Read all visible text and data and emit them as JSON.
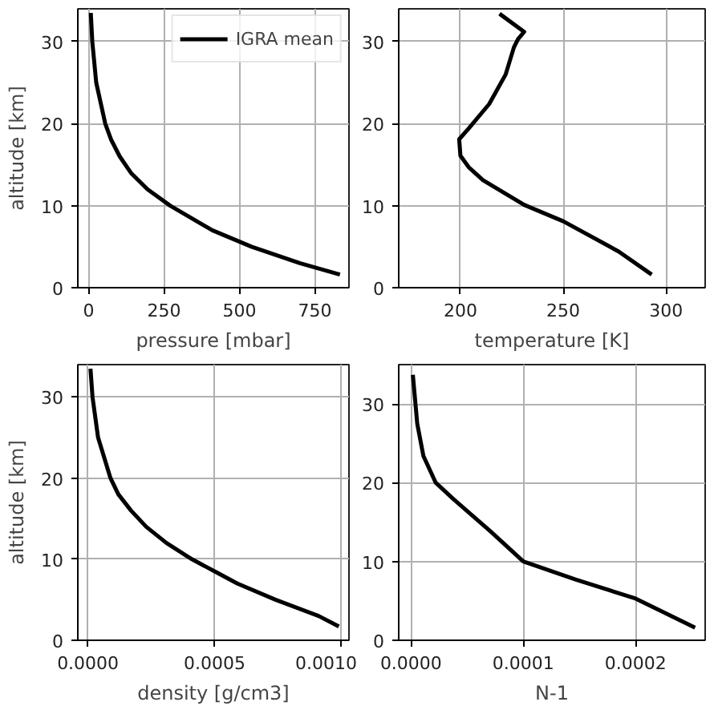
{
  "chart_data": [
    {
      "type": "line",
      "xlabel": "pressure [mbar]",
      "ylabel": "altitude [km]",
      "xlim": [
        -36,
        863
      ],
      "ylim": [
        0,
        34
      ],
      "xticks": [
        0,
        250,
        500,
        750
      ],
      "yticks": [
        0,
        10,
        20,
        30
      ],
      "grid": true,
      "legend": "top right",
      "line_style": "solid",
      "series": [
        {
          "name": "IGRA mean",
          "color": "#000000",
          "x": [
            833,
            700,
            540,
            410,
            270,
            195,
            140,
            103,
            75,
            55,
            25,
            12,
            7
          ],
          "values": [
            1.6,
            3,
            5,
            7,
            10,
            12,
            14,
            16,
            18,
            20,
            25,
            30,
            33.5
          ]
        }
      ]
    },
    {
      "type": "line",
      "xlabel": "temperature [K]",
      "xlim": [
        170,
        319
      ],
      "ylim": [
        0,
        34
      ],
      "xticks": [
        200,
        250,
        300
      ],
      "yticks": [
        0,
        10,
        20,
        30
      ],
      "grid": true,
      "line_style": "solid",
      "series": [
        {
          "color": "#000000",
          "x": [
            293,
            277,
            250,
            231,
            211,
            204,
            200,
            199.4,
            204,
            214,
            222,
            226,
            228,
            231,
            219
          ],
          "values": [
            1.6,
            4.4,
            8.1,
            10.1,
            13.1,
            14.7,
            16.1,
            18.1,
            19.4,
            22.4,
            26,
            29.3,
            30.3,
            31.2,
            33.4
          ]
        }
      ]
    },
    {
      "type": "line",
      "xlabel": "density [g/cm3]",
      "ylabel": "altitude [km]",
      "xlim": [
        -4e-05,
        0.00103
      ],
      "ylim": [
        0,
        34
      ],
      "xticks": [
        {
          "value": 0,
          "label": "0.0000"
        },
        {
          "value": 0.0005,
          "label": "0.0005"
        },
        {
          "value": 0.001,
          "label": "0.0010"
        }
      ],
      "yticks": [
        0,
        10,
        20,
        30
      ],
      "grid": true,
      "line_style": "solid",
      "series": [
        {
          "color": "#000000",
          "x": [
            0.00099,
            0.00091,
            0.00074,
            0.00059,
            0.0005,
            0.00041,
            0.00031,
            0.00023,
            0.00017,
            0.00012,
            8.9e-05,
            4e-05,
            1.8e-05,
            1e-05
          ],
          "values": [
            1.7,
            3,
            5,
            7,
            8.5,
            10,
            12,
            14,
            16,
            18,
            20,
            25,
            30,
            33.5
          ]
        }
      ]
    },
    {
      "type": "line",
      "xlabel": "N-1",
      "xlim": [
        -1.1e-05,
        0.000262
      ],
      "ylim": [
        0,
        35
      ],
      "xticks": [
        {
          "value": 0,
          "label": "0.0000"
        },
        {
          "value": 0.0001,
          "label": "0.0001"
        },
        {
          "value": 0.0002,
          "label": "0.0002"
        }
      ],
      "yticks": [
        0,
        10,
        20,
        30
      ],
      "grid": true,
      "line_style": "solid",
      "series": [
        {
          "color": "#000000",
          "x": [
            0.000253,
            0.0002,
            0.000147,
            0.0001,
            7.1e-05,
            3.8e-05,
            2.2e-05,
            1.1e-05,
            5.5e-06,
            1.6e-06
          ],
          "values": [
            1.6,
            5.3,
            7.7,
            10,
            13.8,
            17.9,
            20,
            23.4,
            27.5,
            33.7
          ]
        }
      ]
    }
  ]
}
